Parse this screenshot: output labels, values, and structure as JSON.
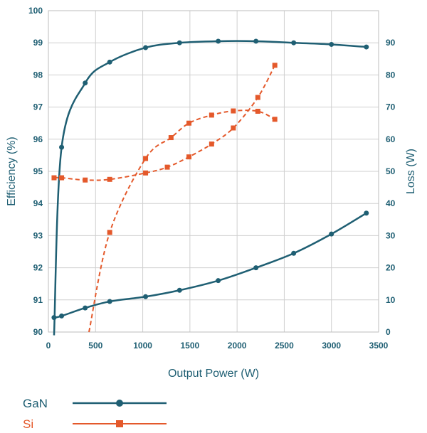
{
  "chart_data": {
    "type": "line",
    "xlabel": "Output Power (W)",
    "ylabel": "Efficiency (%)",
    "y2label": "Loss (W)",
    "xlim": [
      0,
      3500
    ],
    "ylim": [
      90,
      100
    ],
    "y2lim": [
      0,
      100
    ],
    "xticks": [
      0,
      500,
      1000,
      1500,
      2000,
      2500,
      3000,
      3500
    ],
    "yticks": [
      90,
      91,
      92,
      93,
      94,
      95,
      96,
      97,
      98,
      99,
      100
    ],
    "y2ticks": [
      0,
      10,
      20,
      30,
      40,
      50,
      60,
      70,
      80,
      90
    ],
    "grid": true,
    "legend_placement": "bottom-left",
    "colors": {
      "GaN": "#1f5f73",
      "Si": "#e4592b"
    },
    "series": [
      {
        "name": "GaN",
        "role": "efficiency",
        "axis": "left",
        "marker": "circle",
        "line_style": "solid",
        "x": [
          60,
          140,
          390,
          650,
          1030,
          1390,
          1800,
          2200,
          2600,
          3000,
          3370
        ],
        "y": [
          89.9,
          95.75,
          97.75,
          98.4,
          98.85,
          99.0,
          99.05,
          99.05,
          99.0,
          98.95,
          98.87
        ]
      },
      {
        "name": "GaN",
        "role": "loss",
        "axis": "right",
        "marker": "circle",
        "line_style": "solid",
        "x": [
          60,
          140,
          390,
          650,
          1030,
          1390,
          1800,
          2200,
          2600,
          3000,
          3370
        ],
        "y": [
          4.5,
          5.0,
          7.5,
          9.5,
          11.0,
          13.0,
          16.0,
          20.0,
          24.5,
          30.5,
          37.0
        ]
      },
      {
        "name": "Si",
        "role": "efficiency",
        "axis": "left",
        "marker": "square",
        "line_style": "dashed",
        "x": [
          430,
          650,
          1030,
          1300,
          1490,
          1730,
          1960,
          2220,
          2400
        ],
        "y": [
          90.0,
          93.1,
          95.4,
          96.05,
          96.5,
          96.75,
          96.88,
          96.87,
          96.62
        ]
      },
      {
        "name": "Si",
        "role": "loss",
        "axis": "right",
        "marker": "square",
        "line_style": "dashed",
        "x": [
          60,
          140,
          390,
          650,
          1030,
          1260,
          1490,
          1730,
          1960,
          2220,
          2400
        ],
        "y": [
          48.0,
          48.0,
          47.3,
          47.5,
          49.5,
          51.3,
          54.5,
          58.5,
          63.5,
          73.0,
          83.0
        ]
      }
    ],
    "legend": [
      {
        "label": "GaN",
        "color": "#1f5f73",
        "marker": "circle"
      },
      {
        "label": "Si",
        "color": "#e4592b",
        "marker": "square"
      }
    ]
  }
}
